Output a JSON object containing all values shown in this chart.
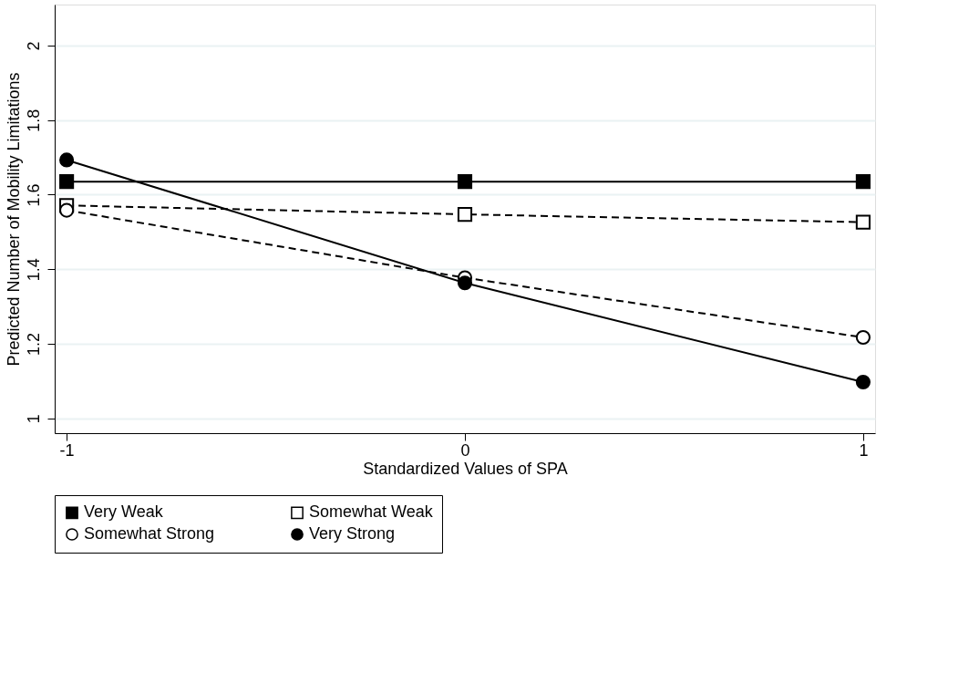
{
  "chart_data": {
    "type": "line",
    "xlabel": "Standardized Values of SPA",
    "ylabel": "Predicted Number of Mobility Limitations",
    "x": [
      -1,
      0,
      1
    ],
    "xlim": [
      -1.03,
      1.03
    ],
    "xticks": [
      -1,
      0,
      1
    ],
    "ylim": [
      0.96,
      2.11
    ],
    "yticks": [
      1,
      1.2,
      1.4,
      1.6,
      1.8,
      2
    ],
    "grid": "y",
    "legend": "bottom",
    "series": [
      {
        "name": "Very Weak",
        "color": "#000000",
        "marker": "square",
        "line_style": "solid",
        "values": [
          1.635,
          1.635,
          1.635
        ]
      },
      {
        "name": "Somewhat Weak",
        "color": "#000000",
        "marker": "square",
        "line_style": "dashed",
        "values": [
          1.571,
          1.547,
          1.526
        ]
      },
      {
        "name": "Somewhat Strong",
        "color": "#000000",
        "marker": "circle",
        "line_style": "dashed",
        "values": [
          1.558,
          1.377,
          1.217
        ]
      },
      {
        "name": "Very Strong",
        "color": "#000000",
        "marker": "circle",
        "line_style": "solid",
        "values": [
          1.693,
          1.363,
          1.097
        ]
      }
    ]
  }
}
